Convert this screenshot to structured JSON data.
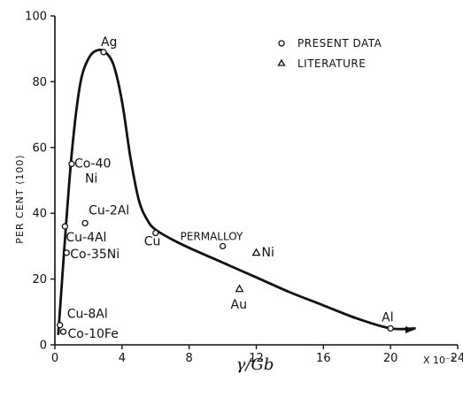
{
  "chart_data": {
    "type": "scatter",
    "xlabel": "γ/Gb",
    "x_multiplier": "X 10⁻³",
    "ylabel": "PER CENT ⟨100⟩",
    "xlim": [
      0,
      24
    ],
    "ylim": [
      0,
      100
    ],
    "xticks": [
      "0",
      "4",
      "8",
      "12",
      "16",
      "20",
      "24"
    ],
    "yticks": [
      "0",
      "20",
      "40",
      "60",
      "80",
      "100"
    ],
    "legend": {
      "position": "top-right",
      "entries": [
        {
          "marker": "circle",
          "label": "PRESENT DATA"
        },
        {
          "marker": "triangle",
          "label": "LITERATURE"
        }
      ]
    },
    "series": [
      {
        "name": "PRESENT DATA",
        "marker": "circle",
        "points": [
          {
            "label": "Ag",
            "x": 2.9,
            "y": 89
          },
          {
            "label": "Co-40 Ni",
            "x": 1.0,
            "y": 55
          },
          {
            "label": "Cu-2Al",
            "x": 1.8,
            "y": 37
          },
          {
            "label": "Cu-4Al",
            "x": 0.6,
            "y": 36
          },
          {
            "label": "Co-35Ni",
            "x": 0.7,
            "y": 28
          },
          {
            "label": "Cu-8Al",
            "x": 0.3,
            "y": 6
          },
          {
            "label": "Co-10Fe",
            "x": 0.5,
            "y": 4
          },
          {
            "label": "Cu",
            "x": 6.0,
            "y": 34
          },
          {
            "label": "PERMALLOY",
            "x": 10.0,
            "y": 30
          },
          {
            "label": "Al",
            "x": 20.0,
            "y": 5
          }
        ]
      },
      {
        "name": "LITERATURE",
        "marker": "triangle",
        "points": [
          {
            "label": "Ni",
            "x": 12.0,
            "y": 28
          },
          {
            "label": "Au",
            "x": 11.0,
            "y": 17
          }
        ]
      }
    ],
    "curve": {
      "x": [
        0.2,
        0.5,
        1.0,
        1.5,
        2.0,
        2.5,
        3.0,
        3.5,
        4.0,
        4.5,
        5.0,
        5.5,
        6.0,
        7.0,
        8.0,
        10.0,
        12.0,
        14.0,
        16.0,
        18.0,
        20.0,
        21.5
      ],
      "y": [
        3,
        25,
        58,
        79,
        87,
        89.5,
        89,
        85,
        74,
        57,
        44,
        38,
        35,
        32,
        29.5,
        25,
        20.5,
        16,
        12,
        8,
        5,
        5
      ]
    }
  }
}
